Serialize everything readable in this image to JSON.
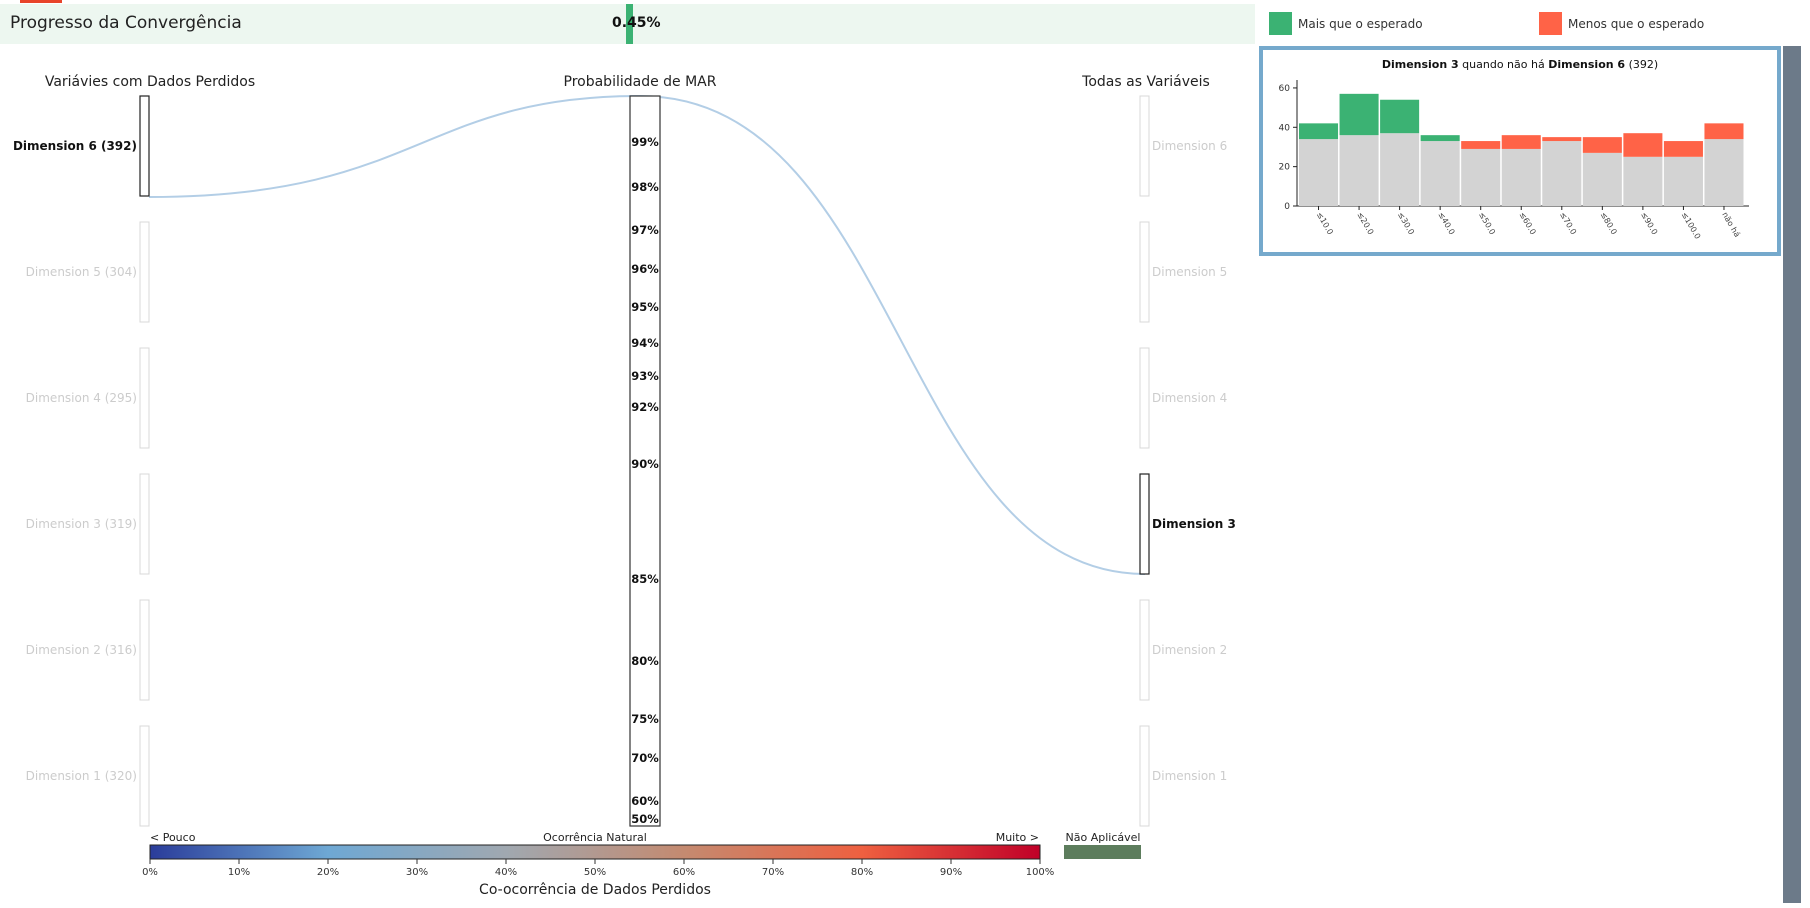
{
  "header": {
    "title": "Progresso da Convergência",
    "progress_label": "0.45%",
    "progress_fraction": 0.0045,
    "progress_color": "#3bb273",
    "accent_color": "#e8442a"
  },
  "legend": {
    "more_label": "Mais que o esperado",
    "more_color": "#3bb273",
    "less_label": "Menos que o esperado",
    "less_color": "#ff6347"
  },
  "columns": {
    "left_title": "Variávies com Dados Perdidos",
    "middle_title": "Probabilidade de MAR",
    "right_title": "Todas as Variáveis"
  },
  "left_variables": [
    {
      "label": "Dimension 6 (392)",
      "active": true
    },
    {
      "label": "Dimension 5 (304)",
      "active": false
    },
    {
      "label": "Dimension 4 (295)",
      "active": false
    },
    {
      "label": "Dimension 3 (319)",
      "active": false
    },
    {
      "label": "Dimension 2 (316)",
      "active": false
    },
    {
      "label": "Dimension 1 (320)",
      "active": false
    }
  ],
  "right_variables": [
    {
      "label": "Dimension 6",
      "active": false
    },
    {
      "label": "Dimension 5",
      "active": false
    },
    {
      "label": "Dimension 4",
      "active": false
    },
    {
      "label": "Dimension 3",
      "active": true
    },
    {
      "label": "Dimension 2",
      "active": false
    },
    {
      "label": "Dimension 1",
      "active": false
    }
  ],
  "probability_scale": [
    "99%",
    "98%",
    "97%",
    "96%",
    "95%",
    "94%",
    "93%",
    "92%",
    "90%",
    "85%",
    "80%",
    "75%",
    "70%",
    "60%",
    "50%"
  ],
  "colorbar": {
    "left_label": "< Pouco",
    "middle_label": "Ocorrência Natural",
    "right_label": "Muito >",
    "na_label": "Não Aplicável",
    "na_color": "#5d7d5d",
    "title": "Co-ocorrência de Dados Perdidos",
    "ticks": [
      "0%",
      "10%",
      "20%",
      "30%",
      "40%",
      "50%",
      "60%",
      "70%",
      "80%",
      "90%",
      "100%"
    ],
    "colors": [
      "#2a3c9a",
      "#6ea8d4",
      "#a0a8b0",
      "#c48a70",
      "#ee6040",
      "#c00028"
    ]
  },
  "chart_data": {
    "type": "bar",
    "title_bold_1": "Dimension 3",
    "title_mid": "quando não há",
    "title_bold_2": "Dimension 6",
    "title_count": "(392)",
    "categories": [
      "≤10.0",
      "≤20.0",
      "≤30.0",
      "≤40.0",
      "≤50.0",
      "≤60.0",
      "≤70.0",
      "≤80.0",
      "≤90.0",
      "≤100.0",
      "não há"
    ],
    "ylim": [
      0,
      62
    ],
    "yticks": [
      "0",
      "20",
      "40",
      "60"
    ],
    "series": [
      {
        "name": "",
        "color": "#d3d3d3",
        "values": [
          34,
          36,
          37,
          33,
          29,
          29,
          33,
          27,
          25,
          25,
          34
        ]
      },
      {
        "name": "Mais que o esperado",
        "color": "#3bb273",
        "values": [
          8,
          21,
          17,
          3,
          0,
          0,
          0,
          0,
          0,
          0,
          0
        ]
      },
      {
        "name": "Menos que o esperado",
        "color": "#ff6347",
        "values": [
          0,
          0,
          0,
          0,
          4,
          7,
          2,
          8,
          12,
          8,
          8
        ]
      }
    ]
  }
}
